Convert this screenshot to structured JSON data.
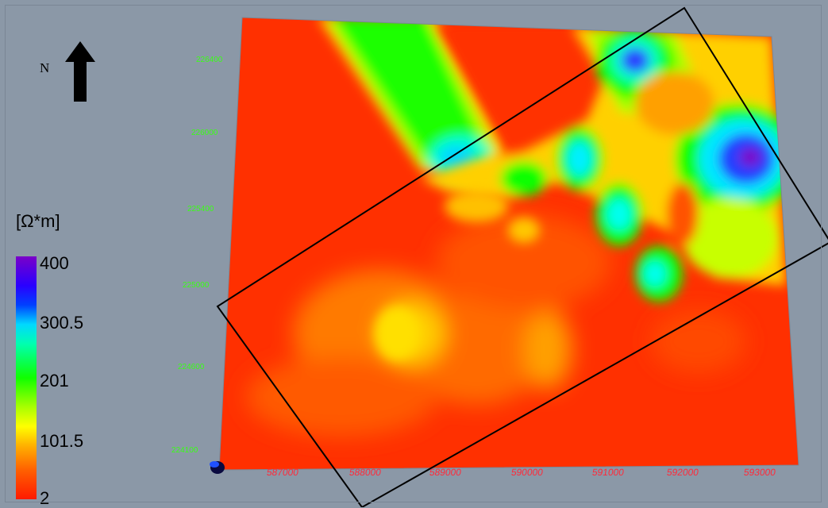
{
  "map": {
    "north_label": "N",
    "legend": {
      "unit": "[Ω*m]",
      "ticks": [
        "400",
        "300.5",
        "201",
        "101.5",
        "2"
      ]
    },
    "easting_labels": [
      "587000",
      "588000",
      "589000",
      "590000",
      "591000",
      "592000",
      "593000"
    ],
    "northing_labels": [
      "226400",
      "226000",
      "225400",
      "225000",
      "224600",
      "224100"
    ]
  }
}
